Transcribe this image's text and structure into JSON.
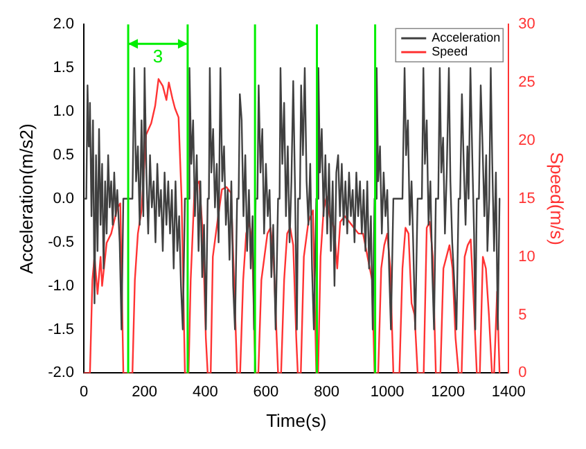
{
  "chart_data": {
    "type": "line",
    "xlabel": "Time(s)",
    "ylabel": "Acceleration(m/s2)",
    "y2label": "Speed(m/s)",
    "xlim": [
      0,
      1400
    ],
    "xticks": [
      0,
      200,
      400,
      600,
      800,
      1000,
      1200,
      1400
    ],
    "ylim": [
      -2.0,
      2.0
    ],
    "yticks": [
      {
        "value": -2,
        "label": "-2.0"
      },
      {
        "value": -1.5,
        "label": "-1.5"
      },
      {
        "value": -1,
        "label": "-1.0"
      },
      {
        "value": -0.5,
        "label": "-0.5"
      },
      {
        "value": 0,
        "label": "0.0"
      },
      {
        "value": 0.5,
        "label": "0.5"
      },
      {
        "value": 1,
        "label": "1.0"
      },
      {
        "value": 1.5,
        "label": "1.5"
      },
      {
        "value": 2,
        "label": "2.0"
      }
    ],
    "y2lim": [
      0,
      30
    ],
    "y2ticks": [
      0,
      5,
      10,
      15,
      20,
      25,
      30
    ],
    "grid": false,
    "legend": "top right",
    "marker": "none",
    "line_style": "solid",
    "series": [
      {
        "name": "Acceleration",
        "color": "#404040",
        "x": [
          0,
          8,
          12,
          16,
          20,
          25,
          30,
          35,
          40,
          45,
          50,
          55,
          60,
          65,
          70,
          75,
          80,
          85,
          90,
          95,
          100,
          105,
          110,
          118,
          124,
          130,
          160,
          166,
          172,
          178,
          184,
          190,
          196,
          200,
          206,
          212,
          218,
          224,
          230,
          236,
          242,
          248,
          254,
          260,
          266,
          272,
          278,
          284,
          290,
          296,
          302,
          308,
          314,
          320,
          326,
          333,
          345,
          348,
          354,
          360,
          366,
          372,
          378,
          384,
          390,
          396,
          402,
          408,
          412,
          415,
          420,
          426,
          432,
          438,
          444,
          450,
          456,
          462,
          468,
          474,
          480,
          486,
          492,
          498,
          505,
          510,
          514,
          520,
          526,
          532,
          538,
          544,
          550,
          556,
          561,
          566,
          572,
          576,
          582,
          588,
          594,
          600,
          606,
          612,
          618,
          624,
          632,
          640,
          645,
          648,
          654,
          660,
          666,
          672,
          678,
          684,
          690,
          696,
          702,
          706,
          712,
          716,
          722,
          728,
          734,
          740,
          746,
          752,
          758,
          766,
          770,
          773,
          778,
          784,
          790,
          796,
          802,
          808,
          814,
          820,
          826,
          832,
          838,
          844,
          850,
          856,
          862,
          868,
          874,
          880,
          886,
          892,
          898,
          904,
          910,
          916,
          922,
          928,
          934,
          940,
          946,
          952,
          958,
          962,
          965,
          970,
          976,
          982,
          988,
          994,
          1000,
          1006,
          1012,
          1020,
          1050,
          1057,
          1062,
          1068,
          1074,
          1080,
          1086,
          1092,
          1100,
          1114,
          1119,
          1124,
          1130,
          1136,
          1142,
          1148,
          1154,
          1160,
          1168,
          1173,
          1178,
          1184,
          1190,
          1196,
          1203,
          1208,
          1214,
          1220,
          1228,
          1235,
          1240,
          1246,
          1252,
          1258,
          1264,
          1268,
          1274,
          1280,
          1286,
          1290,
          1295,
          1302,
          1308,
          1314,
          1320,
          1326,
          1330,
          1336,
          1341,
          1346,
          1352,
          1358,
          1364,
          1370
        ],
        "values": [
          0,
          0,
          1.3,
          0.6,
          1.1,
          -0.2,
          0.9,
          -1.2,
          0.5,
          -0.6,
          0.8,
          -0.3,
          0.4,
          -0.8,
          0.2,
          -0.4,
          0.5,
          -0.1,
          0.2,
          -0.3,
          0.3,
          -0.2,
          0.1,
          -0.5,
          -1.5,
          0,
          0,
          1.5,
          0.2,
          0.6,
          -0.3,
          0.9,
          -0.2,
          1.5,
          0.3,
          -0.4,
          0.5,
          -0.1,
          0.2,
          -0.5,
          0.4,
          -0.2,
          0.1,
          -0.6,
          0.3,
          -0.3,
          0.2,
          -0.4,
          0.1,
          -0.8,
          0.2,
          -0.6,
          -0.2,
          -1.0,
          -1.5,
          0,
          0,
          1.5,
          0.4,
          0.9,
          -0.2,
          0.5,
          -0.6,
          0.2,
          -0.9,
          -0.3,
          -1.5,
          0,
          0,
          1.5,
          0.3,
          0.8,
          -0.1,
          0.4,
          -0.5,
          1.5,
          0.2,
          0.6,
          -0.3,
          0.1,
          -0.7,
          0.2,
          -1.0,
          -1.5,
          0,
          0,
          1.2,
          0.9,
          -0.2,
          0.5,
          -0.6,
          0.1,
          -0.8,
          -0.2,
          -1.5,
          0,
          0,
          1.3,
          0.3,
          0.8,
          -0.4,
          0.4,
          -0.2,
          0.1,
          -0.9,
          -0.3,
          -1.5,
          0,
          0,
          1.5,
          0.4,
          1.1,
          -0.2,
          0.6,
          -0.5,
          0.2,
          1.35,
          0.1,
          -1.5,
          0,
          0,
          1.3,
          0.5,
          1.5,
          0.2,
          -0.3,
          0.4,
          -0.8,
          -1.5,
          0,
          0,
          1.5,
          0.3,
          0.8,
          -0.2,
          0.5,
          -0.4,
          0.4,
          -0.6,
          0.2,
          -1.0,
          0.3,
          0.5,
          -0.2,
          0.4,
          -0.3,
          0.2,
          -0.4,
          0.3,
          -0.2,
          0.1,
          -0.5,
          0.3,
          -0.2,
          0.2,
          -0.4,
          0.1,
          -0.6,
          0.2,
          -0.8,
          -0.2,
          -1.5,
          0,
          0,
          1.5,
          0.2,
          0.6,
          -0.4,
          0.3,
          -0.2,
          0.1,
          -0.8,
          -1.5,
          0,
          0,
          1.5,
          0.5,
          0.9,
          -0.3,
          0.2,
          -0.6,
          -1.5,
          0,
          0,
          1.5,
          0.4,
          0.9,
          -0.3,
          0.2,
          -0.8,
          -1.5,
          0,
          0,
          1.5,
          0.3,
          0.7,
          -0.4,
          0.3,
          1.5,
          0.2,
          -0.5,
          -0.9,
          -1.5,
          0,
          0,
          1.2,
          0.4,
          -0.3,
          0.6,
          0,
          1.5,
          0.5,
          -0.4,
          -1.5,
          0,
          0,
          1.3,
          0.6,
          -0.2,
          0.5,
          -0.6,
          0,
          1.5,
          0.4,
          -0.6,
          0.3,
          -1.5,
          0
        ]
      },
      {
        "name": "Speed",
        "color": "#ff3333",
        "axis": "y2",
        "x": [
          0,
          20,
          28,
          35,
          45,
          55,
          60,
          75,
          90,
          110,
          120,
          126,
          130,
          160,
          168,
          178,
          190,
          205,
          222,
          235,
          246,
          260,
          272,
          280,
          292,
          300,
          312,
          322,
          333,
          345,
          352,
          365,
          380,
          392,
          402,
          408,
          418,
          425,
          440,
          455,
          470,
          485,
          495,
          505,
          515,
          525,
          535,
          545,
          555,
          562,
          566,
          575,
          585,
          595,
          605,
          615,
          625,
          640,
          650,
          660,
          670,
          680,
          690,
          700,
          705,
          715,
          725,
          740,
          755,
          762,
          766,
          772,
          780,
          790,
          800,
          810,
          825,
          835,
          845,
          860,
          875,
          890,
          905,
          920,
          935,
          950,
          958,
          970,
          980,
          990,
          1000,
          1010,
          1020,
          1040,
          1050,
          1060,
          1070,
          1080,
          1090,
          1100,
          1120,
          1130,
          1140,
          1150,
          1160,
          1175,
          1185,
          1195,
          1205,
          1215,
          1225,
          1235,
          1245,
          1255,
          1265,
          1275,
          1285,
          1295,
          1305,
          1315,
          1325,
          1335,
          1345,
          1352,
          1362,
          1370
        ],
        "values": [
          0,
          0,
          8,
          10,
          6.8,
          10,
          7.5,
          11.2,
          12,
          14.2,
          14.6,
          6,
          0,
          0,
          8,
          12,
          14,
          20.5,
          21.5,
          23,
          25.3,
          24.7,
          23.5,
          25,
          23.6,
          22.8,
          22,
          15,
          0,
          0,
          8,
          16,
          16.5,
          12,
          3,
          0,
          0,
          10,
          13,
          15.8,
          16,
          15.5,
          8,
          0,
          0,
          8,
          12,
          13,
          11,
          3,
          0,
          0,
          8,
          10,
          12,
          12.5,
          10,
          0,
          0,
          8,
          12,
          12.5,
          11,
          3,
          0,
          0,
          10,
          13,
          14,
          5,
          0,
          0,
          10,
          14,
          15.2,
          13.5,
          12.5,
          9,
          13,
          13.5,
          13,
          12.5,
          12,
          12,
          10,
          8,
          0,
          0,
          9,
          11,
          12,
          9,
          0,
          0,
          9,
          12.5,
          12,
          6,
          5,
          0,
          0,
          12.5,
          13,
          10,
          0,
          0,
          9,
          10,
          11,
          9,
          3,
          0,
          0,
          10,
          11,
          11.5,
          6,
          0,
          0,
          10,
          9,
          5,
          0,
          0,
          7,
          0
        ]
      }
    ],
    "ref_lines": [
      {
        "axis": "x",
        "value": 146,
        "color": "#00ee00"
      },
      {
        "axis": "x",
        "value": 342,
        "color": "#00ee00"
      },
      {
        "axis": "x",
        "value": 564,
        "color": "#00ee00"
      },
      {
        "axis": "x",
        "value": 768,
        "color": "#00ee00"
      },
      {
        "axis": "x",
        "value": 960,
        "color": "#00ee00"
      }
    ],
    "annotations": [
      "3"
    ]
  }
}
